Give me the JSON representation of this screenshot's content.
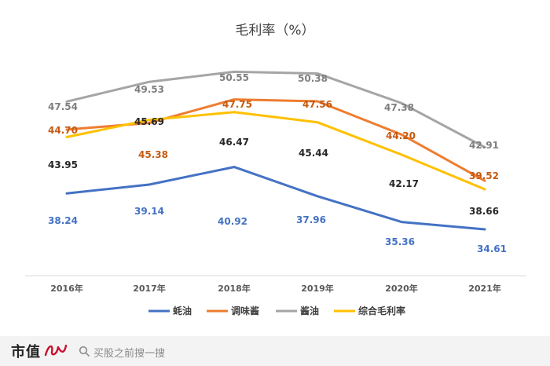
{
  "chart_data": {
    "type": "line",
    "title": "毛利率（%）",
    "categories": [
      "2016年",
      "2017年",
      "2018年",
      "2019年",
      "2020年",
      "2021年"
    ],
    "ylim": [
      30,
      54
    ],
    "grid": false,
    "legend_position": "bottom",
    "series": [
      {
        "name": "蚝油",
        "color": "#4472c4",
        "label_color": "#4472c4",
        "values": [
          38.24,
          39.14,
          40.92,
          37.96,
          35.36,
          34.61
        ]
      },
      {
        "name": "调味酱",
        "color": "#ed7d31",
        "label_color": "#c55a11",
        "values": [
          44.7,
          45.38,
          47.75,
          47.56,
          44.2,
          39.52
        ]
      },
      {
        "name": "酱油",
        "color": "#a5a5a5",
        "label_color": "#7f7f7f",
        "values": [
          47.54,
          49.53,
          50.55,
          50.38,
          47.38,
          42.91
        ]
      },
      {
        "name": "综合毛利率",
        "color": "#ffc000",
        "label_color": "#262626",
        "values": [
          43.95,
          45.69,
          46.47,
          45.44,
          42.17,
          38.66
        ]
      }
    ]
  },
  "footer": {
    "brand": "市值",
    "search_placeholder": "买股之前搜一搜"
  }
}
